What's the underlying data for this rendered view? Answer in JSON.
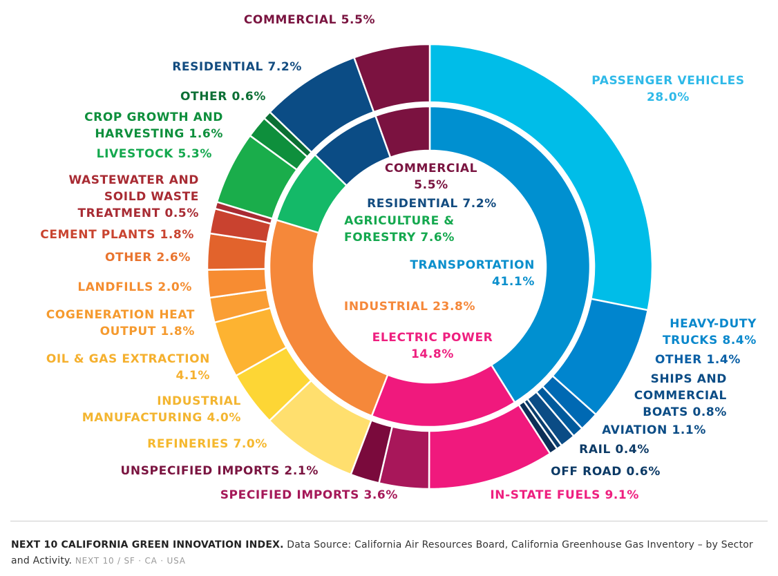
{
  "chart_data": {
    "type": "pie",
    "title": "",
    "inner": [
      {
        "name": "TRANSPORTATION",
        "value": 41.1,
        "color": "#0090D0",
        "text": [
          "TRANSPORTATION",
          "41.1%"
        ]
      },
      {
        "name": "ELECTRIC POWER",
        "value": 14.8,
        "color": "#F0197D",
        "text": [
          "ELECTRIC POWER",
          "14.8%"
        ]
      },
      {
        "name": "INDUSTRIAL",
        "value": 23.8,
        "color": "#F5883A",
        "text": [
          "INDUSTRIAL 23.8%"
        ]
      },
      {
        "name": "AGRICULTURE & FORESTRY",
        "value": 7.6,
        "color": "#14B968",
        "text": [
          "AGRICULTURE &",
          "FORESTRY 7.6%"
        ]
      },
      {
        "name": "RESIDENTIAL",
        "value": 7.2,
        "color": "#0B4C85",
        "text": [
          "RESIDENTIAL 7.2%"
        ]
      },
      {
        "name": "COMMERCIAL",
        "value": 5.5,
        "color": "#7B1240",
        "text": [
          "COMMERCIAL",
          "5.5%"
        ]
      }
    ],
    "outer": [
      {
        "name": "PASSENGER VEHICLES",
        "value": 28.0,
        "color": "#00BDE8",
        "text": [
          "PASSENGER VEHICLES",
          "28.0%"
        ]
      },
      {
        "name": "HEAVY-DUTY TRUCKS",
        "value": 8.4,
        "color": "#0085CE",
        "text": [
          "HEAVY-DUTY",
          "TRUCKS 8.4%"
        ]
      },
      {
        "name": "OTHER",
        "value": 1.4,
        "color": "#0069B3",
        "text": [
          "OTHER 1.4%"
        ]
      },
      {
        "name": "SHIPS AND COMMERCIAL BOATS",
        "value": 0.8,
        "color": "#005A9C",
        "text": [
          "SHIPS AND",
          "COMMERCIAL",
          "BOATS 0.8%"
        ]
      },
      {
        "name": "AVIATION",
        "value": 1.1,
        "color": "#0B4C85",
        "text": [
          "AVIATION 1.1%"
        ]
      },
      {
        "name": "RAIL",
        "value": 0.4,
        "color": "#0A3D6E",
        "text": [
          "RAIL 0.4%"
        ]
      },
      {
        "name": "OFF ROAD",
        "value": 0.6,
        "color": "#0C2F57",
        "text": [
          "OFF ROAD 0.6%"
        ]
      },
      {
        "name": "IN-STATE FUELS",
        "value": 9.1,
        "color": "#F0197D",
        "text": [
          "IN-STATE FUELS 9.1%"
        ]
      },
      {
        "name": "SPECIFIED IMPORTS",
        "value": 3.6,
        "color": "#A8175A",
        "text": [
          "SPECIFIED IMPORTS 3.6%"
        ]
      },
      {
        "name": "UNSPECIFIED IMPORTS",
        "value": 2.1,
        "color": "#7A0A3C",
        "text": [
          "UNSPECIFIED IMPORTS 2.1%"
        ]
      },
      {
        "name": "REFINERIES",
        "value": 7.0,
        "color": "#FFDF6E",
        "text": [
          "REFINERIES 7.0%"
        ]
      },
      {
        "name": "INDUSTRIAL MANUFACTURING",
        "value": 4.0,
        "color": "#FDD635",
        "text": [
          "INDUSTRIAL",
          "MANUFACTURING 4.0%"
        ]
      },
      {
        "name": "OIL & GAS EXTRACTION",
        "value": 4.1,
        "color": "#FDB331",
        "text": [
          "OIL & GAS EXTRACTION",
          "4.1%"
        ]
      },
      {
        "name": "COGENERATION HEAT OUTPUT",
        "value": 1.8,
        "color": "#FA9E34",
        "text": [
          "COGENERATION HEAT",
          "OUTPUT 1.8%"
        ]
      },
      {
        "name": "LANDFILLS",
        "value": 2.0,
        "color": "#F78C32",
        "text": [
          "LANDFILLS 2.0%"
        ]
      },
      {
        "name": "OTHER",
        "value": 2.6,
        "color": "#E2632C",
        "text": [
          "OTHER 2.6%"
        ]
      },
      {
        "name": "CEMENT PLANTS",
        "value": 1.8,
        "color": "#C9422F",
        "text": [
          "CEMENT PLANTS 1.8%"
        ]
      },
      {
        "name": "WASTEWATER AND SOILD WASTE TREATMENT",
        "value": 0.5,
        "color": "#A82B33",
        "text": [
          "WASTEWATER AND",
          "SOILD WASTE",
          "TREATMENT 0.5%"
        ]
      },
      {
        "name": "LIVESTOCK",
        "value": 5.3,
        "color": "#1AAD4B",
        "text": [
          "LIVESTOCK 5.3%"
        ]
      },
      {
        "name": "CROP GROWTH AND HARVESTING",
        "value": 1.6,
        "color": "#0E8F3C",
        "text": [
          "CROP GROWTH AND",
          "HARVESTING 1.6%"
        ]
      },
      {
        "name": "OTHER",
        "value": 0.6,
        "color": "#0B6F33",
        "text": [
          "OTHER 0.6%"
        ]
      },
      {
        "name": "RESIDENTIAL",
        "value": 7.2,
        "color": "#0B4C85",
        "text": [
          "RESIDENTIAL 7.2%"
        ]
      },
      {
        "name": "COMMERCIAL",
        "value": 5.5,
        "color": "#7B1240",
        "text": [
          "COMMERCIAL 5.5%"
        ]
      }
    ]
  },
  "label_colors": {
    "outer": [
      "#2FB9E8",
      "#0A88CC",
      "#0A5FA5",
      "#0B4C85",
      "#0B4C85",
      "#0C3A66",
      "#0C3A66",
      "#EE1F7F",
      "#A51858",
      "#7A1440",
      "#F5B82E",
      "#F3B530",
      "#F5B02E",
      "#F59A2E",
      "#F48D30",
      "#E9742E",
      "#C94430",
      "#A82B33",
      "#14A84E",
      "#0E8F3C",
      "#0C6F35",
      "#134C80",
      "#7A1440"
    ],
    "inner": [
      "#0A8FCC",
      "#EE1F7F",
      "#F5883A",
      "#14A84E",
      "#134C80",
      "#7A1440"
    ]
  },
  "footer": {
    "bold_text": "NEXT 10 CALIFORNIA GREEN INNOVATION INDEX.",
    "source_text": "Data Source: California Air Resources Board, California Greenhouse Gas Inventory – by Sector and Activity.",
    "meta_text": "NEXT 10 / SF · CA · USA"
  }
}
